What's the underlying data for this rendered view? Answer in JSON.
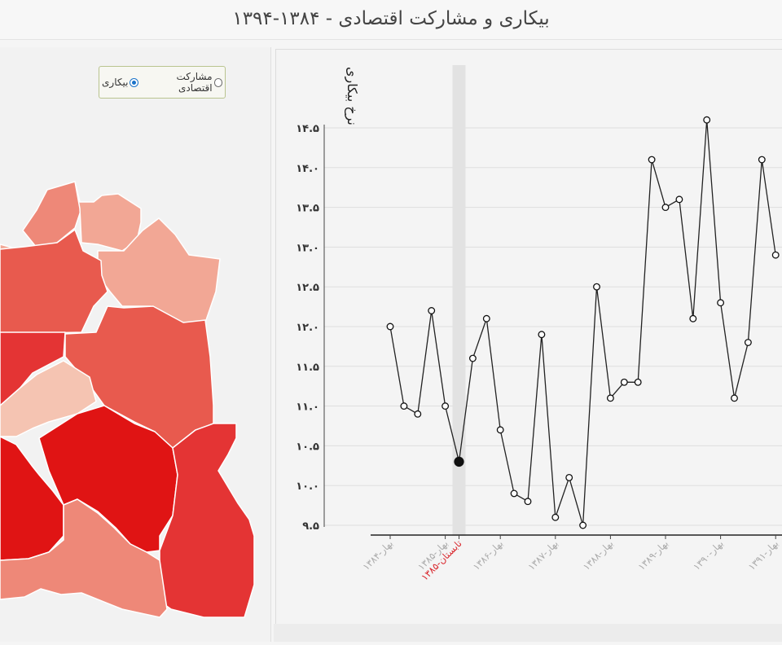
{
  "header": {
    "title": "بیکاری و مشارکت اقتصادی - ۱۳۸۴-۱۳۹۴"
  },
  "map_controls": {
    "option_participation": "مشارکت اقتصادی",
    "option_unemployment": "بیکاری",
    "selected": "بیکاری"
  },
  "colors": {
    "line": "#222222",
    "highlight_band": "#e2e2e2",
    "selected_label": "#d9262c",
    "map_shades": [
      "#e01414",
      "#e43434",
      "#e85a4e",
      "#ee8878",
      "#f2a795",
      "#f5c4b2"
    ]
  },
  "chart_data": {
    "type": "line",
    "title": "",
    "xlabel": "",
    "ylabel": "نرخ بیکاری",
    "ylim": [
      9.5,
      14.5
    ],
    "yticks": [
      "۹.۵",
      "۱۰.۰",
      "۱۰.۵",
      "۱۱.۰",
      "۱۱.۵",
      "۱۲.۰",
      "۱۲.۵",
      "۱۳.۰",
      "۱۳.۵",
      "۱۴.۰",
      "۱۴.۵"
    ],
    "ytick_values": [
      9.5,
      10.0,
      10.5,
      11.0,
      11.5,
      12.0,
      12.5,
      13.0,
      13.5,
      14.0,
      14.5
    ],
    "grid": true,
    "x_labels": [
      "بهار-۱۳۸۴",
      "بهار-۱۳۸۵",
      "تابستان-۱۳۸۵",
      "بهار-۱۳۸۶",
      "بهار-۱۳۸۷",
      "بهار-۱۳۸۸",
      "بهار-۱۳۸۹",
      "بهار-۱۳۹۰",
      "بهار-۱۳۹۱"
    ],
    "x_label_index": [
      0,
      4,
      5,
      8,
      12,
      16,
      20,
      24,
      28
    ],
    "highlight_index": 5,
    "values": [
      12.0,
      11.0,
      10.9,
      12.2,
      11.0,
      10.3,
      11.6,
      12.1,
      10.7,
      9.9,
      9.8,
      11.9,
      9.6,
      10.1,
      9.5,
      12.5,
      11.1,
      11.3,
      11.3,
      14.1,
      13.5,
      13.6,
      12.1,
      14.6,
      12.3,
      11.1,
      11.8,
      14.1,
      12.9
    ]
  }
}
